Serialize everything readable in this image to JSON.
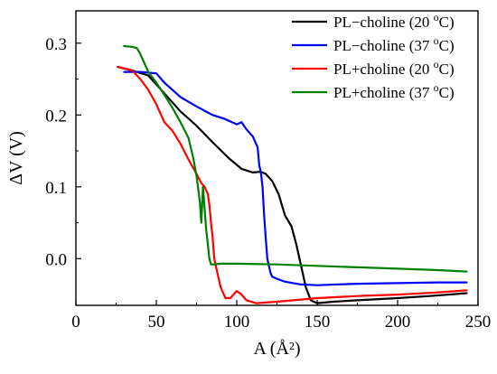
{
  "chart_data": {
    "type": "line",
    "title": "",
    "xlabel": "A (Å²)",
    "ylabel": "ΔV (V)",
    "xlim": [
      0,
      250
    ],
    "ylim": [
      -0.065,
      0.345
    ],
    "xticks": [
      0,
      50,
      100,
      150,
      200,
      250
    ],
    "yticks": [
      0.0,
      0.1,
      0.2,
      0.3
    ],
    "ytick_labels": [
      "0.0",
      "0.1",
      "0.2",
      "0.3"
    ],
    "grid": false,
    "legend_position": "top-right",
    "series": [
      {
        "name": "PL−choline (20 °C)",
        "legend_base": "PL−choline (20 ",
        "legend_sup": "o",
        "legend_tail": "C)",
        "color": "#000000",
        "points": [
          [
            26,
            0.267
          ],
          [
            35,
            0.262
          ],
          [
            45,
            0.255
          ],
          [
            55,
            0.23
          ],
          [
            65,
            0.205
          ],
          [
            75,
            0.185
          ],
          [
            85,
            0.162
          ],
          [
            95,
            0.14
          ],
          [
            103,
            0.125
          ],
          [
            110,
            0.12
          ],
          [
            115,
            0.121
          ],
          [
            118,
            0.118
          ],
          [
            122,
            0.108
          ],
          [
            126,
            0.09
          ],
          [
            130,
            0.06
          ],
          [
            134,
            0.045
          ],
          [
            137,
            0.02
          ],
          [
            140,
            -0.01
          ],
          [
            143,
            -0.04
          ],
          [
            146,
            -0.058
          ],
          [
            150,
            -0.062
          ],
          [
            160,
            -0.06
          ],
          [
            175,
            -0.058
          ],
          [
            200,
            -0.055
          ],
          [
            220,
            -0.052
          ],
          [
            243,
            -0.048
          ]
        ]
      },
      {
        "name": "PL−choline (37 °C)",
        "legend_base": "PL−choline (37 ",
        "legend_sup": "o",
        "legend_tail": "C)",
        "color": "#0000ff",
        "points": [
          [
            30,
            0.26
          ],
          [
            40,
            0.26
          ],
          [
            50,
            0.258
          ],
          [
            55,
            0.245
          ],
          [
            65,
            0.225
          ],
          [
            75,
            0.212
          ],
          [
            85,
            0.2
          ],
          [
            92,
            0.195
          ],
          [
            100,
            0.187
          ],
          [
            103,
            0.19
          ],
          [
            106,
            0.18
          ],
          [
            110,
            0.17
          ],
          [
            113,
            0.155
          ],
          [
            114,
            0.13
          ],
          [
            115,
            0.12
          ],
          [
            116,
            0.1
          ],
          [
            117,
            0.06
          ],
          [
            118,
            0.03
          ],
          [
            119,
            0.0
          ],
          [
            120,
            -0.01
          ],
          [
            121,
            -0.02
          ],
          [
            122,
            -0.025
          ],
          [
            125,
            -0.028
          ],
          [
            130,
            -0.032
          ],
          [
            140,
            -0.036
          ],
          [
            150,
            -0.037
          ],
          [
            175,
            -0.035
          ],
          [
            200,
            -0.034
          ],
          [
            225,
            -0.033
          ],
          [
            243,
            -0.033
          ]
        ]
      },
      {
        "name": "PL+choline (20 °C)",
        "legend_base": "PL+choline (20 ",
        "legend_sup": "o",
        "legend_tail": "C)",
        "color": "#ff0000",
        "points": [
          [
            26,
            0.267
          ],
          [
            35,
            0.262
          ],
          [
            40,
            0.25
          ],
          [
            45,
            0.235
          ],
          [
            50,
            0.215
          ],
          [
            55,
            0.19
          ],
          [
            60,
            0.178
          ],
          [
            65,
            0.16
          ],
          [
            70,
            0.138
          ],
          [
            75,
            0.118
          ],
          [
            78,
            0.105
          ],
          [
            80,
            0.1
          ],
          [
            82,
            0.09
          ],
          [
            83,
            0.075
          ],
          [
            84,
            0.05
          ],
          [
            85,
            0.03
          ],
          [
            86,
            0.0
          ],
          [
            88,
            -0.02
          ],
          [
            90,
            -0.04
          ],
          [
            93,
            -0.055
          ],
          [
            96,
            -0.055
          ],
          [
            100,
            -0.045
          ],
          [
            103,
            -0.05
          ],
          [
            106,
            -0.058
          ],
          [
            112,
            -0.062
          ],
          [
            125,
            -0.06
          ],
          [
            140,
            -0.057
          ],
          [
            150,
            -0.055
          ],
          [
            175,
            -0.052
          ],
          [
            200,
            -0.05
          ],
          [
            225,
            -0.047
          ],
          [
            243,
            -0.044
          ]
        ]
      },
      {
        "name": "PL+choline (37 °C)",
        "legend_base": "PL+choline (37 ",
        "legend_sup": "o",
        "legend_tail": "C)",
        "color": "#008000",
        "points": [
          [
            30,
            0.296
          ],
          [
            35,
            0.295
          ],
          [
            38,
            0.293
          ],
          [
            40,
            0.285
          ],
          [
            45,
            0.26
          ],
          [
            50,
            0.245
          ],
          [
            55,
            0.228
          ],
          [
            60,
            0.21
          ],
          [
            65,
            0.19
          ],
          [
            70,
            0.168
          ],
          [
            73,
            0.14
          ],
          [
            75,
            0.115
          ],
          [
            77,
            0.08
          ],
          [
            78,
            0.05
          ],
          [
            79,
            0.1
          ],
          [
            80,
            0.07
          ],
          [
            81,
            0.04
          ],
          [
            82,
            0.02
          ],
          [
            83,
            0.0
          ],
          [
            84,
            -0.008
          ],
          [
            86,
            -0.008
          ],
          [
            90,
            -0.007
          ],
          [
            100,
            -0.007
          ],
          [
            125,
            -0.008
          ],
          [
            150,
            -0.01
          ],
          [
            175,
            -0.012
          ],
          [
            200,
            -0.014
          ],
          [
            225,
            -0.016
          ],
          [
            243,
            -0.018
          ]
        ]
      }
    ]
  }
}
